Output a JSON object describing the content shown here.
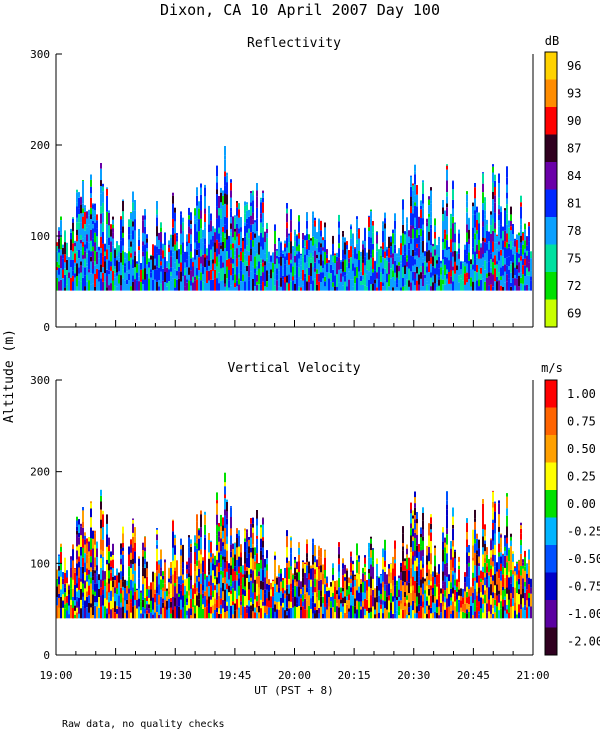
{
  "title": "Dixon, CA 10 April 2007  Day 100",
  "ylabel": "Altitude (m)",
  "xlabel": "UT  (PST + 8)",
  "footnote": "Raw data, no quality checks",
  "x_ticks": [
    "19:00",
    "19:15",
    "19:30",
    "19:45",
    "20:00",
    "20:15",
    "20:30",
    "20:45",
    "21:00"
  ],
  "chart_data": [
    {
      "type": "heatmap",
      "title": "Reflectivity",
      "units": "dB",
      "x_range": [
        "19:00",
        "21:00"
      ],
      "ylim": [
        0,
        300
      ],
      "y_ticks": [
        0,
        100,
        200,
        300
      ],
      "colorbar": {
        "labels": [
          "96",
          "93",
          "90",
          "87",
          "84",
          "81",
          "78",
          "75",
          "72",
          "69"
        ],
        "colors": [
          "#ffd200",
          "#ff8c00",
          "#ff0000",
          "#300020",
          "#6a00a8",
          "#0028ff",
          "#0aa0ff",
          "#00e0a0",
          "#00e000",
          "#c8ff00"
        ]
      },
      "echo_base_m": 40,
      "typical_echo_top_m": [
        80,
        180
      ],
      "max_echo_top_m": 220,
      "gap_after_m": 0
    },
    {
      "type": "heatmap",
      "title": "Vertical Velocity",
      "units": "m/s",
      "x_range": [
        "19:00",
        "21:00"
      ],
      "ylim": [
        0,
        300
      ],
      "y_ticks": [
        0,
        100,
        200,
        300
      ],
      "colorbar": {
        "labels": [
          "1.00",
          "0.75",
          "0.50",
          "0.25",
          "0.00",
          "-0.25",
          "-0.50",
          "-0.75",
          "-1.00",
          "-2.00"
        ],
        "colors": [
          "#ff0000",
          "#ff6400",
          "#ffa000",
          "#ffff00",
          "#00e000",
          "#00b4ff",
          "#0050ff",
          "#0000c8",
          "#5a00a0",
          "#300020"
        ]
      },
      "echo_base_m": 40,
      "typical_echo_top_m": [
        80,
        180
      ],
      "max_echo_top_m": 220
    }
  ]
}
